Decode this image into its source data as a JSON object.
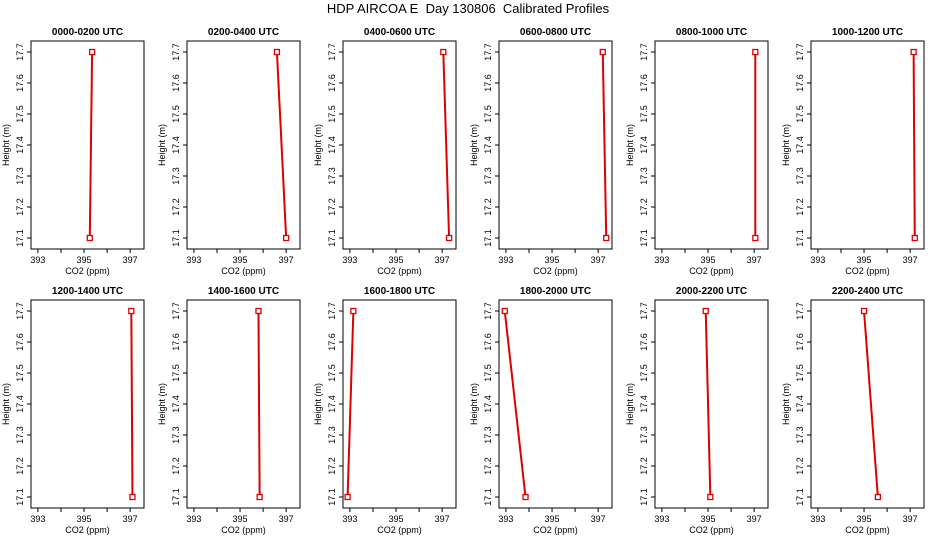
{
  "title": "HDP AIRCOA E  Day 130806  Calibrated Profiles",
  "colors": {
    "profile": "#dd0000",
    "axis": "#000000",
    "background": "#ffffff"
  },
  "chart_data": [
    {
      "type": "line",
      "title": "0000-0200 UTC",
      "xlabel": "CO2 (ppm)",
      "ylabel": "Height (m)",
      "xlim": [
        392.7,
        397.6
      ],
      "ylim": [
        17.07,
        17.73
      ],
      "xticks": [
        "393",
        "395",
        "397"
      ],
      "yticks": [
        "17.1",
        "17.2",
        "17.3",
        "17.4",
        "17.5",
        "17.6",
        "17.7"
      ],
      "series": [
        {
          "x": [
            395.25,
            395.35
          ],
          "y": [
            17.1,
            17.7
          ]
        }
      ]
    },
    {
      "type": "line",
      "title": "0200-0400 UTC",
      "xlabel": "CO2 (ppm)",
      "ylabel": "Height (m)",
      "xlim": [
        392.7,
        397.6
      ],
      "ylim": [
        17.07,
        17.73
      ],
      "xticks": [
        "393",
        "395",
        "397"
      ],
      "yticks": [
        "17.1",
        "17.2",
        "17.3",
        "17.4",
        "17.5",
        "17.6",
        "17.7"
      ],
      "series": [
        {
          "x": [
            397.0,
            396.6
          ],
          "y": [
            17.1,
            17.7
          ]
        }
      ]
    },
    {
      "type": "line",
      "title": "0400-0600 UTC",
      "xlabel": "CO2 (ppm)",
      "ylabel": "Height (m)",
      "xlim": [
        392.7,
        397.6
      ],
      "ylim": [
        17.07,
        17.73
      ],
      "xticks": [
        "393",
        "395",
        "397"
      ],
      "yticks": [
        "17.1",
        "17.2",
        "17.3",
        "17.4",
        "17.5",
        "17.6",
        "17.7"
      ],
      "series": [
        {
          "x": [
            397.3,
            397.05
          ],
          "y": [
            17.1,
            17.7
          ]
        }
      ]
    },
    {
      "type": "line",
      "title": "0600-0800 UTC",
      "xlabel": "CO2 (ppm)",
      "ylabel": "Height (m)",
      "xlim": [
        392.7,
        397.6
      ],
      "ylim": [
        17.07,
        17.73
      ],
      "xticks": [
        "393",
        "395",
        "397"
      ],
      "yticks": [
        "17.1",
        "17.2",
        "17.3",
        "17.4",
        "17.5",
        "17.6",
        "17.7"
      ],
      "series": [
        {
          "x": [
            397.35,
            397.2
          ],
          "y": [
            17.1,
            17.7
          ]
        }
      ]
    },
    {
      "type": "line",
      "title": "0800-1000 UTC",
      "xlabel": "CO2 (ppm)",
      "ylabel": "Height (m)",
      "xlim": [
        392.7,
        397.6
      ],
      "ylim": [
        17.07,
        17.73
      ],
      "xticks": [
        "393",
        "395",
        "397"
      ],
      "yticks": [
        "17.1",
        "17.2",
        "17.3",
        "17.4",
        "17.5",
        "17.6",
        "17.7"
      ],
      "series": [
        {
          "x": [
            397.05,
            397.05
          ],
          "y": [
            17.1,
            17.7
          ]
        }
      ]
    },
    {
      "type": "line",
      "title": "1000-1200 UTC",
      "xlabel": "CO2 (ppm)",
      "ylabel": "Height (m)",
      "xlim": [
        392.7,
        397.6
      ],
      "ylim": [
        17.07,
        17.73
      ],
      "xticks": [
        "393",
        "395",
        "397"
      ],
      "yticks": [
        "17.1",
        "17.2",
        "17.3",
        "17.4",
        "17.5",
        "17.6",
        "17.7"
      ],
      "series": [
        {
          "x": [
            397.2,
            397.15
          ],
          "y": [
            17.1,
            17.7
          ]
        }
      ]
    },
    {
      "type": "line",
      "title": "1200-1400 UTC",
      "xlabel": "CO2 (ppm)",
      "ylabel": "Height (m)",
      "xlim": [
        392.7,
        397.6
      ],
      "ylim": [
        17.07,
        17.73
      ],
      "xticks": [
        "393",
        "395",
        "397"
      ],
      "yticks": [
        "17.1",
        "17.2",
        "17.3",
        "17.4",
        "17.5",
        "17.6",
        "17.7"
      ],
      "series": [
        {
          "x": [
            397.1,
            397.05
          ],
          "y": [
            17.1,
            17.7
          ]
        }
      ]
    },
    {
      "type": "line",
      "title": "1400-1600 UTC",
      "xlabel": "CO2 (ppm)",
      "ylabel": "Height (m)",
      "xlim": [
        392.7,
        397.6
      ],
      "ylim": [
        17.07,
        17.73
      ],
      "xticks": [
        "393",
        "395",
        "397"
      ],
      "yticks": [
        "17.1",
        "17.2",
        "17.3",
        "17.4",
        "17.5",
        "17.6",
        "17.7"
      ],
      "series": [
        {
          "x": [
            395.85,
            395.8
          ],
          "y": [
            17.1,
            17.7
          ]
        }
      ]
    },
    {
      "type": "line",
      "title": "1600-1800 UTC",
      "xlabel": "CO2 (ppm)",
      "ylabel": "Height (m)",
      "xlim": [
        392.7,
        397.6
      ],
      "ylim": [
        17.07,
        17.73
      ],
      "xticks": [
        "393",
        "395",
        "397"
      ],
      "yticks": [
        "17.1",
        "17.2",
        "17.3",
        "17.4",
        "17.5",
        "17.6",
        "17.7"
      ],
      "series": [
        {
          "x": [
            392.9,
            393.15
          ],
          "y": [
            17.1,
            17.7
          ]
        }
      ]
    },
    {
      "type": "line",
      "title": "1800-2000 UTC",
      "xlabel": "CO2 (ppm)",
      "ylabel": "Height (m)",
      "xlim": [
        392.7,
        397.6
      ],
      "ylim": [
        17.07,
        17.73
      ],
      "xticks": [
        "393",
        "395",
        "397"
      ],
      "yticks": [
        "17.1",
        "17.2",
        "17.3",
        "17.4",
        "17.5",
        "17.6",
        "17.7"
      ],
      "series": [
        {
          "x": [
            393.85,
            392.95
          ],
          "y": [
            17.1,
            17.7
          ]
        }
      ]
    },
    {
      "type": "line",
      "title": "2000-2200 UTC",
      "xlabel": "CO2 (ppm)",
      "ylabel": "Height (m)",
      "xlim": [
        392.7,
        397.6
      ],
      "ylim": [
        17.07,
        17.73
      ],
      "xticks": [
        "393",
        "395",
        "397"
      ],
      "yticks": [
        "17.1",
        "17.2",
        "17.3",
        "17.4",
        "17.5",
        "17.6",
        "17.7"
      ],
      "series": [
        {
          "x": [
            395.1,
            394.9
          ],
          "y": [
            17.1,
            17.7
          ]
        }
      ]
    },
    {
      "type": "line",
      "title": "2200-2400 UTC",
      "xlabel": "CO2 (ppm)",
      "ylabel": "Height (m)",
      "xlim": [
        392.7,
        397.6
      ],
      "ylim": [
        17.07,
        17.73
      ],
      "xticks": [
        "393",
        "395",
        "397"
      ],
      "yticks": [
        "17.1",
        "17.2",
        "17.3",
        "17.4",
        "17.5",
        "17.6",
        "17.7"
      ],
      "series": [
        {
          "x": [
            395.6,
            395.0
          ],
          "y": [
            17.1,
            17.7
          ]
        }
      ]
    }
  ]
}
